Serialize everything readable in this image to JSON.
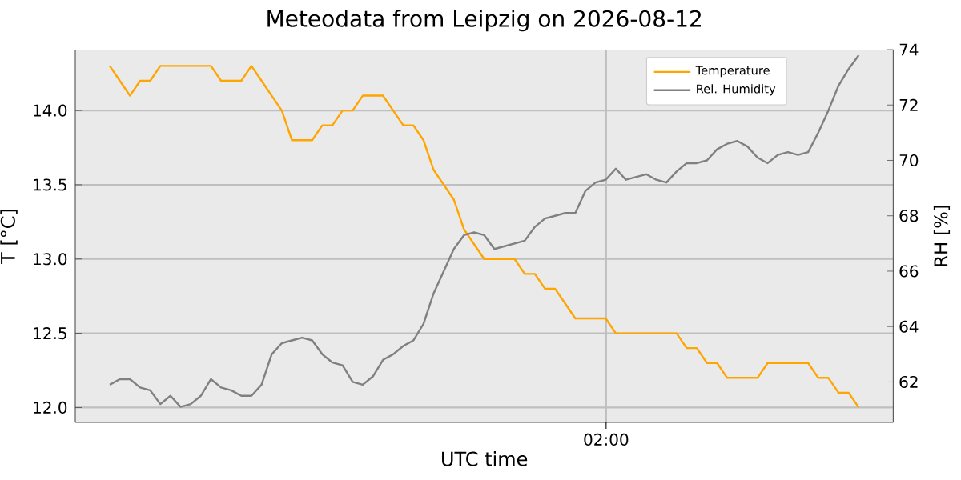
{
  "chart_data": {
    "type": "line",
    "title": "Meteodata from Leipzig on 2026-08-12",
    "xlabel": "UTC time",
    "ylabel": "T [°C]",
    "y2label": "RH [%]",
    "annotations": [
      "02:00"
    ],
    "categories": [
      null,
      null,
      null,
      null,
      null,
      null,
      null,
      null,
      null,
      null,
      null,
      null,
      null,
      null,
      null,
      null,
      null,
      null,
      null,
      null,
      null,
      null,
      null,
      null,
      null,
      null,
      null,
      null,
      null,
      null,
      null,
      null,
      null,
      null,
      null,
      null,
      null,
      null,
      null,
      null,
      null,
      null,
      null,
      null,
      null,
      null,
      null,
      null,
      null,
      null,
      null,
      null,
      null,
      null,
      null,
      null,
      null,
      null,
      null,
      null,
      null,
      null,
      null,
      null,
      null,
      null,
      null,
      null,
      null,
      null,
      null,
      null,
      null,
      null,
      null
    ],
    "ylim": [
      11.9,
      14.41
    ],
    "yticks": [
      {
        "value": 12,
        "label": "12.0"
      },
      {
        "value": 12.5,
        "label": "12.5"
      },
      {
        "value": 13,
        "label": "13.0"
      },
      {
        "value": 13.5,
        "label": "13.5"
      },
      {
        "value": 14,
        "label": "14.0"
      }
    ],
    "y2lim": [
      60.54,
      74
    ],
    "y2ticks": [
      {
        "value": 62,
        "label": "62"
      },
      {
        "value": 64,
        "label": "64"
      },
      {
        "value": 66,
        "label": "66"
      },
      {
        "value": 68,
        "label": "68"
      },
      {
        "value": 70,
        "label": "70"
      },
      {
        "value": 72,
        "label": "72"
      },
      {
        "value": 74,
        "label": "74"
      }
    ],
    "grid": true,
    "legend": "top right",
    "series": [
      {
        "name": "Temperature",
        "color": "#ffa500",
        "values": [
          14.3,
          14.2,
          14.1,
          14.2,
          14.2,
          14.3,
          14.3,
          14.3,
          14.3,
          14.3,
          14.3,
          14.2,
          14.2,
          14.2,
          14.3,
          14.2,
          14.1,
          14.0,
          13.8,
          13.8,
          13.8,
          13.9,
          13.9,
          14.0,
          14.0,
          14.1,
          14.1,
          14.1,
          14.0,
          13.9,
          13.9,
          13.8,
          13.6,
          13.5,
          13.4,
          13.2,
          13.1,
          13.0,
          13.0,
          13.0,
          13.0,
          12.9,
          12.9,
          12.8,
          12.8,
          12.7,
          12.6,
          12.6,
          12.6,
          12.6,
          12.5,
          12.5,
          12.5,
          12.5,
          12.5,
          12.5,
          12.5,
          12.4,
          12.4,
          12.3,
          12.3,
          12.2,
          12.2,
          12.2,
          12.2,
          12.3,
          12.3,
          12.3,
          12.3,
          12.3,
          12.2,
          12.2,
          12.1,
          12.1,
          12.0
        ]
      },
      {
        "name": "Rel. Humidity",
        "color": "#808080",
        "axis": "y2",
        "values": [
          61.9,
          62.1,
          62.1,
          61.8,
          61.7,
          61.2,
          61.5,
          61.1,
          61.2,
          61.5,
          62.1,
          61.8,
          61.7,
          61.5,
          61.5,
          61.9,
          63.0,
          63.4,
          63.5,
          63.6,
          63.5,
          63.0,
          62.7,
          62.6,
          62.0,
          61.9,
          62.2,
          62.8,
          63.0,
          63.3,
          63.5,
          64.1,
          65.2,
          66.0,
          66.8,
          67.3,
          67.4,
          67.3,
          66.8,
          66.9,
          67.0,
          67.1,
          67.6,
          67.9,
          68.0,
          68.1,
          68.1,
          68.9,
          69.2,
          69.3,
          69.7,
          69.3,
          69.4,
          69.5,
          69.3,
          69.2,
          69.6,
          69.9,
          69.9,
          70.0,
          70.4,
          70.6,
          70.7,
          70.5,
          70.1,
          69.9,
          70.2,
          70.3,
          70.2,
          70.3,
          71.0,
          71.8,
          72.7,
          73.3,
          73.8
        ]
      }
    ]
  }
}
